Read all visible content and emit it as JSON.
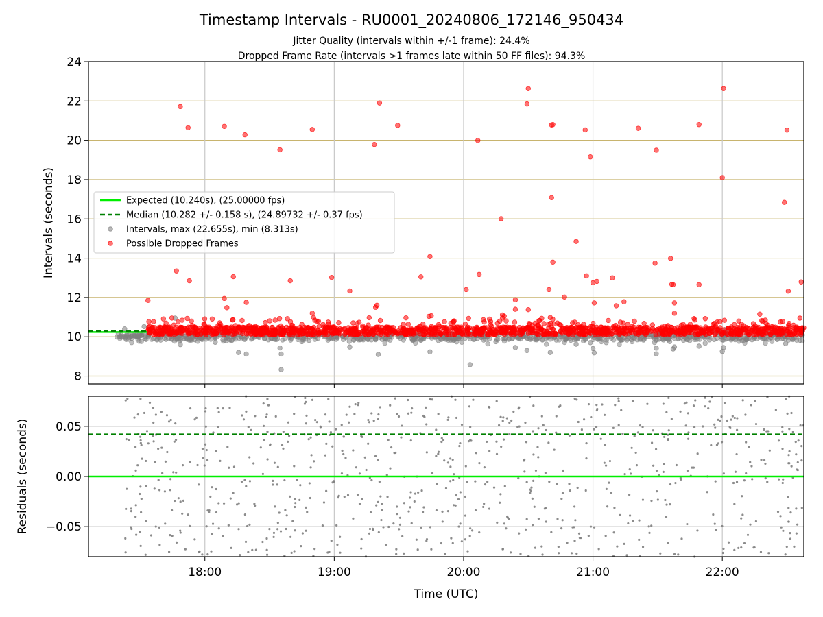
{
  "title": "Timestamp Intervals - RU0001_20240806_172146_950434",
  "subtitles": [
    "Jitter Quality (intervals within +/-1 frame): 24.4%",
    "Dropped Frame Rate (intervals >1 frames late within 50 FF files): 94.3%"
  ],
  "colors": {
    "expected": "#00ee00",
    "median": "#008000",
    "intervals": "#808080",
    "dropped": "#ff0000",
    "hgrid_top": "#c8b46e",
    "grid": "#c8c8c8"
  },
  "chart_data": [
    {
      "type": "scatter",
      "ylabel": "Intervals (seconds)",
      "ylim": [
        7.6,
        24
      ],
      "xlim_hours": [
        17.1,
        22.63
      ],
      "yticks": [
        "8",
        "10",
        "12",
        "14",
        "16",
        "18",
        "20",
        "22",
        "24"
      ],
      "ytick_values": [
        8,
        10,
        12,
        14,
        16,
        18,
        20,
        22,
        24
      ],
      "grid": "on",
      "legend_position": "center-left",
      "legend": [
        "Expected (10.240s), (25.00000 fps)",
        "Median (10.282 +/- 0.158 s), (24.89732 +/- 0.37 fps)",
        "Intervals, max (22.655s), min (8.313s)",
        "Possible Dropped Frames"
      ],
      "expected_value": 10.24,
      "median_value": 10.282,
      "data_range_hours": [
        17.32,
        22.63
      ],
      "dropped_outliers": [
        [
          17.56,
          11.85
        ],
        [
          17.78,
          13.35
        ],
        [
          17.81,
          21.72
        ],
        [
          17.87,
          20.64
        ],
        [
          17.88,
          12.85
        ],
        [
          18.15,
          20.71
        ],
        [
          18.15,
          11.95
        ],
        [
          18.17,
          11.48
        ],
        [
          18.22,
          13.06
        ],
        [
          18.31,
          20.28
        ],
        [
          18.32,
          11.75
        ],
        [
          18.58,
          19.52
        ],
        [
          18.66,
          12.85
        ],
        [
          18.83,
          20.55
        ],
        [
          18.83,
          11.2
        ],
        [
          18.84,
          10.97
        ],
        [
          18.98,
          13.02
        ],
        [
          19.12,
          12.33
        ],
        [
          19.31,
          19.79
        ],
        [
          19.32,
          11.5
        ],
        [
          19.33,
          11.6
        ],
        [
          19.35,
          21.9
        ],
        [
          19.49,
          20.76
        ],
        [
          19.67,
          13.05
        ],
        [
          19.74,
          14.08
        ],
        [
          19.75,
          11.07
        ],
        [
          20.02,
          12.4
        ],
        [
          20.11,
          19.99
        ],
        [
          20.12,
          13.17
        ],
        [
          20.16,
          10.75
        ],
        [
          20.2,
          10.9
        ],
        [
          20.29,
          16.01
        ],
        [
          20.3,
          11.11
        ],
        [
          20.4,
          11.88
        ],
        [
          20.4,
          11.4
        ],
        [
          20.49,
          21.85
        ],
        [
          20.5,
          22.63
        ],
        [
          20.5,
          11.38
        ],
        [
          20.66,
          12.4
        ],
        [
          20.67,
          10.98
        ],
        [
          20.68,
          20.78
        ],
        [
          20.69,
          20.8
        ],
        [
          20.68,
          17.08
        ],
        [
          20.69,
          13.8
        ],
        [
          20.78,
          12.02
        ],
        [
          20.87,
          14.85
        ],
        [
          20.94,
          20.53
        ],
        [
          20.95,
          13.1
        ],
        [
          20.98,
          19.16
        ],
        [
          21.0,
          12.75
        ],
        [
          21.01,
          11.72
        ],
        [
          21.03,
          12.82
        ],
        [
          21.15,
          13.0
        ],
        [
          21.18,
          11.58
        ],
        [
          21.24,
          11.78
        ],
        [
          21.35,
          20.61
        ],
        [
          21.48,
          13.75
        ],
        [
          21.49,
          19.5
        ],
        [
          21.6,
          13.99
        ],
        [
          21.61,
          12.67
        ],
        [
          21.62,
          12.65
        ],
        [
          21.63,
          11.72
        ],
        [
          21.63,
          11.2
        ],
        [
          21.82,
          20.8
        ],
        [
          21.82,
          12.65
        ],
        [
          22.0,
          18.1
        ],
        [
          22.01,
          22.63
        ],
        [
          22.29,
          11.15
        ],
        [
          22.48,
          16.84
        ],
        [
          22.5,
          20.52
        ],
        [
          22.51,
          12.32
        ],
        [
          22.6,
          10.95
        ],
        [
          22.61,
          12.79
        ]
      ],
      "interval_outliers": [
        [
          17.38,
          10.4
        ],
        [
          17.48,
          10.0
        ],
        [
          17.53,
          10.52
        ],
        [
          17.77,
          10.95
        ],
        [
          17.8,
          9.88
        ],
        [
          17.81,
          9.6
        ],
        [
          17.92,
          9.85
        ],
        [
          18.08,
          9.72
        ],
        [
          18.17,
          9.95
        ],
        [
          18.26,
          9.2
        ],
        [
          18.32,
          9.12
        ],
        [
          18.46,
          9.9
        ],
        [
          18.58,
          9.43
        ],
        [
          18.59,
          9.12
        ],
        [
          18.59,
          8.33
        ],
        [
          18.75,
          9.75
        ],
        [
          19.12,
          9.48
        ],
        [
          19.32,
          9.85
        ],
        [
          19.34,
          9.1
        ],
        [
          19.74,
          9.23
        ],
        [
          20.05,
          8.58
        ],
        [
          20.25,
          9.75
        ],
        [
          20.4,
          9.45
        ],
        [
          20.49,
          9.3
        ],
        [
          20.67,
          9.2
        ],
        [
          20.87,
          9.62
        ],
        [
          20.98,
          9.7
        ],
        [
          21.0,
          9.4
        ],
        [
          21.01,
          9.18
        ],
        [
          21.23,
          9.85
        ],
        [
          21.49,
          9.42
        ],
        [
          21.49,
          9.13
        ],
        [
          21.63,
          9.48
        ],
        [
          21.62,
          9.38
        ],
        [
          21.82,
          9.52
        ],
        [
          22.0,
          9.25
        ],
        [
          22.01,
          9.45
        ],
        [
          22.49,
          9.65
        ],
        [
          22.6,
          9.82
        ]
      ]
    },
    {
      "type": "scatter",
      "ylabel": "Residuals (seconds)",
      "xlabel": "Time (UTC)",
      "ylim": [
        -0.08,
        0.08
      ],
      "yticks": [
        "−0.05",
        "0.00",
        "0.05"
      ],
      "ytick_values": [
        -0.05,
        0.0,
        0.05
      ],
      "xticks": [
        "18:00",
        "19:00",
        "20:00",
        "21:00",
        "22:00"
      ],
      "xtick_hours": [
        18,
        19,
        20,
        21,
        22
      ],
      "grid": "on",
      "expected_residual": 0.0,
      "median_residual": 0.042,
      "residual_range": [
        -0.08,
        0.08
      ],
      "data_range_hours": [
        17.38,
        22.63
      ]
    }
  ]
}
